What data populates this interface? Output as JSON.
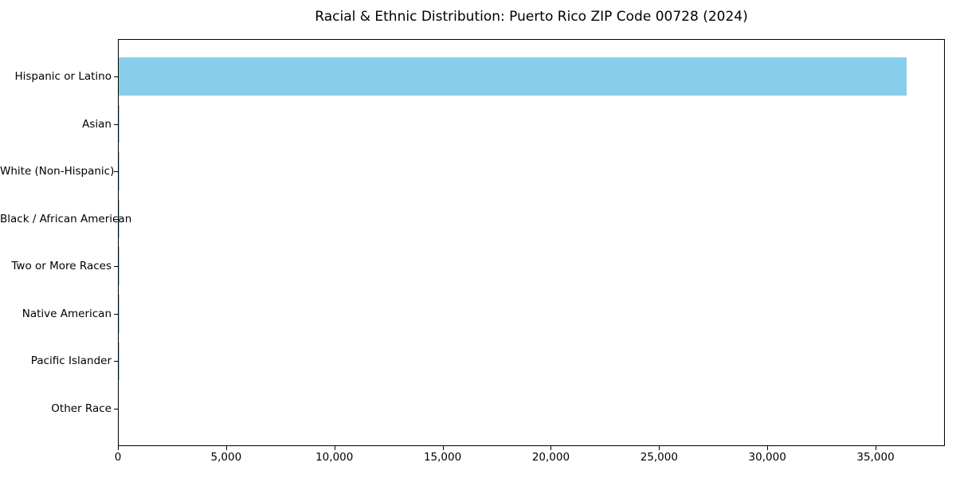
{
  "chart_data": {
    "type": "bar",
    "orientation": "horizontal",
    "title": "Racial & Ethnic Distribution: Puerto Rico ZIP Code 00728 (2024)",
    "categories": [
      "Hispanic or Latino",
      "Asian",
      "White (Non-Hispanic)",
      "Black / African American",
      "Two or More Races",
      "Native American",
      "Pacific Islander",
      "Other Race"
    ],
    "values": [
      36390,
      50,
      40,
      35,
      15,
      10,
      5,
      0
    ],
    "xticks": [
      0,
      5000,
      10000,
      15000,
      20000,
      25000,
      30000,
      35000
    ],
    "xtick_labels": [
      "0",
      "5,000",
      "10,000",
      "15,000",
      "20,000",
      "25,000",
      "30,000",
      "35,000"
    ],
    "xlim": [
      0,
      38200
    ],
    "xlabel": "",
    "ylabel": "",
    "grid": false,
    "legend": "none",
    "bar_color": "#87CEEB",
    "axis_color": "#000000",
    "text_color": "#000000",
    "background_color": "#FFFFFF",
    "bar_height_fraction": 0.8,
    "sort_order": "descending"
  }
}
